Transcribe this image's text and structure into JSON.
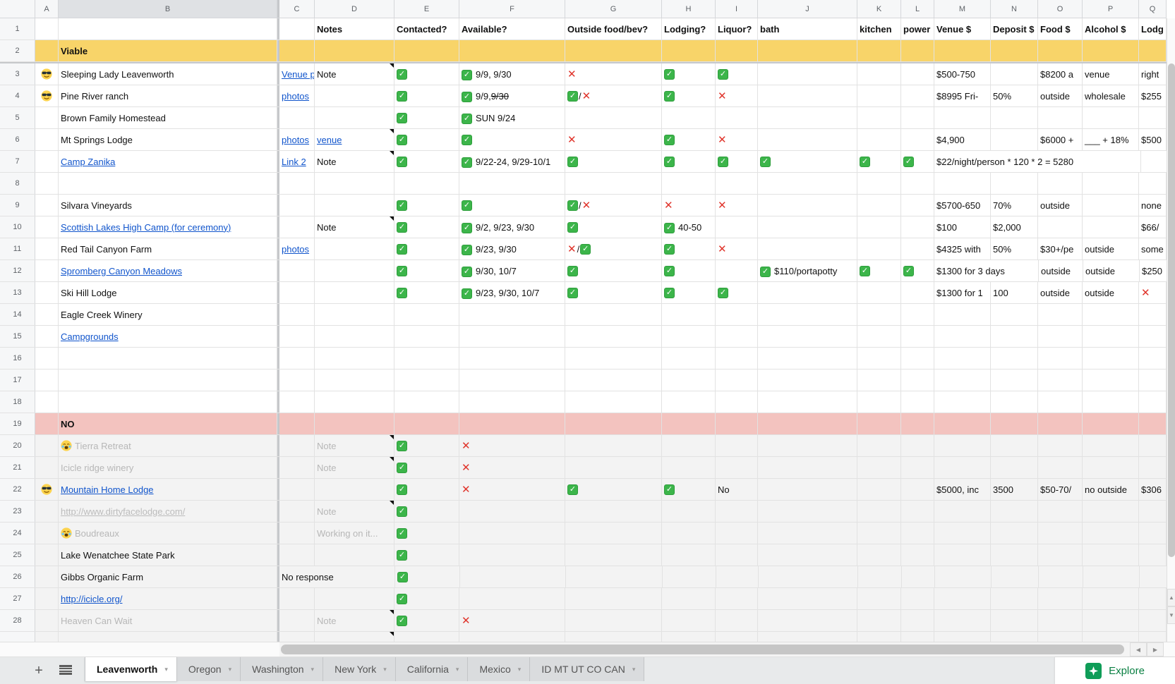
{
  "colors": {
    "viable_row": "#f8d469",
    "no_row": "#f3c3bf",
    "grayed_row": "#f3f3f3",
    "check_green": "#3cb54a",
    "cross_red": "#e0342b",
    "link_blue": "#1155cc",
    "explore_green": "#0b8043"
  },
  "icons": {
    "plus": "+",
    "caret": "▾",
    "check": "✓",
    "cross": "✕",
    "up": "▲",
    "down": "▼",
    "left": "◀",
    "right": "▶"
  },
  "sheet": {
    "row_header_width": 50,
    "columns": [
      [
        "A",
        33
      ],
      [
        "B",
        310
      ],
      [
        "C",
        50
      ],
      [
        "D",
        113
      ],
      [
        "E",
        92
      ],
      [
        "F",
        150
      ],
      [
        "G",
        137
      ],
      [
        "H",
        76
      ],
      [
        "I",
        60
      ],
      [
        "J",
        141
      ],
      [
        "K",
        62
      ],
      [
        "L",
        47
      ],
      [
        "M",
        80
      ],
      [
        "N",
        67
      ],
      [
        "O",
        63
      ],
      [
        "P",
        80
      ],
      [
        "Q",
        39
      ]
    ],
    "selected_column": "B",
    "frozen_after_column": "B",
    "frozen_after_row": 2,
    "rows": [
      {
        "n": 1,
        "head": true,
        "cells": {
          "D": {
            "t": "Notes"
          },
          "E": {
            "t": "Contacted?"
          },
          "F": {
            "t": "Available?"
          },
          "G": {
            "t": "Outside food/bev?"
          },
          "H": {
            "t": "Lodging?"
          },
          "I": {
            "t": "Liquor?"
          },
          "J": {
            "t": "bath"
          },
          "K": {
            "t": "kitchen"
          },
          "L": {
            "t": "power"
          },
          "M": {
            "t": "Venue $"
          },
          "N": {
            "t": "Deposit $"
          },
          "O": {
            "t": "Food $"
          },
          "P": {
            "t": "Alcohol $"
          },
          "Q": {
            "t": "Lodg"
          }
        }
      },
      {
        "n": 2,
        "bg": "yellow",
        "cells": {
          "B": {
            "t": "Viable",
            "b": true
          }
        }
      },
      {
        "n": 3,
        "a": "cool",
        "cells": {
          "B": {
            "t": "Sleeping Lady Leavenworth"
          },
          "C": {
            "t": "Venue p",
            "link": true
          },
          "D": {
            "t": "Note",
            "cm": true
          },
          "E": {
            "i": "c"
          },
          "F": {
            "i": "c",
            "t": "9/9, 9/30"
          },
          "G": {
            "i": "x"
          },
          "H": {
            "i": "c"
          },
          "I": {
            "i": "c"
          },
          "M": {
            "t": "$500-750"
          },
          "O": {
            "t": "$8200 a"
          },
          "P": {
            "t": "venue"
          },
          "Q": {
            "t": "right"
          }
        }
      },
      {
        "n": 4,
        "a": "cool",
        "cells": {
          "B": {
            "t": "Pine River ranch"
          },
          "C": {
            "t": "photos",
            "link": true
          },
          "E": {
            "i": "c"
          },
          "F": {
            "i": "c",
            "t": "9/9, ",
            "strike": "9/30"
          },
          "G": {
            "i": "cx"
          },
          "H": {
            "i": "c"
          },
          "I": {
            "i": "x"
          },
          "M": {
            "t": "$8995 Fri-"
          },
          "N": {
            "t": "50%"
          },
          "O": {
            "t": "outside"
          },
          "P": {
            "t": "wholesale"
          },
          "Q": {
            "t": "$255"
          }
        }
      },
      {
        "n": 5,
        "cells": {
          "B": {
            "t": "Brown Family Homestead"
          },
          "E": {
            "i": "c"
          },
          "F": {
            "i": "c",
            "t": "SUN 9/24"
          }
        }
      },
      {
        "n": 6,
        "cells": {
          "B": {
            "t": "Mt Springs Lodge"
          },
          "C": {
            "t": "photos",
            "link": true
          },
          "D": {
            "t": "venue",
            "link": true,
            "cm": true
          },
          "E": {
            "i": "c"
          },
          "F": {
            "i": "c"
          },
          "G": {
            "i": "x"
          },
          "H": {
            "i": "c"
          },
          "I": {
            "i": "x"
          },
          "M": {
            "t": "$4,900"
          },
          "O": {
            "t": "$6000 +"
          },
          "P": {
            "t": "___ + 18%"
          },
          "Q": {
            "t": "$500"
          }
        }
      },
      {
        "n": 7,
        "cells": {
          "B": {
            "t": "Camp Zanika",
            "link": true
          },
          "C": {
            "t": "Link 2",
            "link": true
          },
          "D": {
            "t": "Note",
            "cm": true
          },
          "E": {
            "i": "c"
          },
          "F": {
            "i": "c",
            "t": "9/22-24, 9/29-10/1"
          },
          "G": {
            "i": "c"
          },
          "H": {
            "i": "c"
          },
          "I": {
            "i": "c"
          },
          "J": {
            "i": "c"
          },
          "K": {
            "i": "c"
          },
          "L": {
            "i": "c"
          },
          "M": {
            "t": "$22/night/person * 120 * 2 = 5280",
            "sp": 4
          }
        }
      },
      {
        "n": 8,
        "cells": {}
      },
      {
        "n": 9,
        "cells": {
          "B": {
            "t": "Silvara Vineyards"
          },
          "E": {
            "i": "c"
          },
          "F": {
            "i": "c"
          },
          "G": {
            "i": "cx"
          },
          "H": {
            "i": "x"
          },
          "I": {
            "i": "x"
          },
          "M": {
            "t": "$5700-650"
          },
          "N": {
            "t": "70%"
          },
          "O": {
            "t": "outside"
          },
          "Q": {
            "t": "none"
          }
        }
      },
      {
        "n": 10,
        "cells": {
          "B": {
            "t": "Scottish Lakes High Camp (for ceremony)",
            "link": true
          },
          "D": {
            "t": "Note",
            "cm": true
          },
          "E": {
            "i": "c"
          },
          "F": {
            "i": "c",
            "t": "9/2, 9/23, 9/30"
          },
          "G": {
            "i": "c"
          },
          "H": {
            "i": "c",
            "t": "40-50"
          },
          "M": {
            "t": "$100"
          },
          "N": {
            "t": "$2,000"
          },
          "Q": {
            "t": "$66/"
          }
        }
      },
      {
        "n": 11,
        "cells": {
          "B": {
            "t": "Red Tail Canyon Farm"
          },
          "C": {
            "t": "photos",
            "link": true
          },
          "E": {
            "i": "c"
          },
          "F": {
            "i": "c",
            "t": "9/23, 9/30"
          },
          "G": {
            "i": "xc"
          },
          "H": {
            "i": "c"
          },
          "I": {
            "i": "x"
          },
          "M": {
            "t": "$4325 with"
          },
          "N": {
            "t": "50%"
          },
          "O": {
            "t": "$30+/pe"
          },
          "P": {
            "t": "outside"
          },
          "Q": {
            "t": "some"
          }
        }
      },
      {
        "n": 12,
        "cells": {
          "B": {
            "t": "Spromberg Canyon Meadows",
            "link": true
          },
          "E": {
            "i": "c"
          },
          "F": {
            "i": "c",
            "t": "9/30, 10/7"
          },
          "G": {
            "i": "c"
          },
          "H": {
            "i": "c"
          },
          "J": {
            "i": "c",
            "t": "$110/portapotty"
          },
          "K": {
            "i": "c"
          },
          "L": {
            "i": "c"
          },
          "M": {
            "t": "$1300 for 3 days",
            "sp": 2
          },
          "O": {
            "t": "outside"
          },
          "P": {
            "t": "outside"
          },
          "Q": {
            "t": "$250"
          }
        }
      },
      {
        "n": 13,
        "cells": {
          "B": {
            "t": "Ski Hill Lodge"
          },
          "E": {
            "i": "c"
          },
          "F": {
            "i": "c",
            "t": "9/23, 9/30, 10/7"
          },
          "G": {
            "i": "c"
          },
          "H": {
            "i": "c"
          },
          "I": {
            "i": "c"
          },
          "M": {
            "t": "$1300 for 1"
          },
          "N": {
            "t": "100"
          },
          "O": {
            "t": "outside"
          },
          "P": {
            "t": "outside"
          },
          "Q": {
            "i": "x"
          }
        }
      },
      {
        "n": 14,
        "cells": {
          "B": {
            "t": "Eagle Creek Winery"
          }
        }
      },
      {
        "n": 15,
        "cells": {
          "B": {
            "t": "Campgrounds",
            "link": true
          }
        }
      },
      {
        "n": 16,
        "cells": {}
      },
      {
        "n": 17,
        "cells": {}
      },
      {
        "n": 18,
        "cells": {}
      },
      {
        "n": 19,
        "bg": "pink",
        "cells": {
          "B": {
            "t": "NO",
            "b": true
          }
        }
      },
      {
        "n": 20,
        "bg": "gray",
        "cells": {
          "B": {
            "em": "cry",
            "t": "Tierra Retreat",
            "gray": true
          },
          "D": {
            "t": "Note",
            "gray": true,
            "cm": true
          },
          "E": {
            "i": "c"
          },
          "F": {
            "i": "x"
          }
        }
      },
      {
        "n": 21,
        "bg": "gray",
        "cells": {
          "B": {
            "t": "Icicle ridge winery",
            "gray": true
          },
          "D": {
            "t": "Note",
            "gray": true,
            "cm": true
          },
          "E": {
            "i": "c"
          },
          "F": {
            "i": "x"
          }
        }
      },
      {
        "n": 22,
        "bg": "gray",
        "a": "cool",
        "cells": {
          "B": {
            "t": "Mountain Home Lodge",
            "link": true
          },
          "E": {
            "i": "c"
          },
          "F": {
            "i": "x"
          },
          "G": {
            "i": "c"
          },
          "H": {
            "i": "c"
          },
          "I": {
            "t": "No"
          },
          "M": {
            "t": "$5000, inc"
          },
          "N": {
            "t": "3500"
          },
          "O": {
            "t": "$50-70/"
          },
          "P": {
            "t": "no outside"
          },
          "Q": {
            "t": "$306"
          }
        }
      },
      {
        "n": 23,
        "bg": "gray",
        "cells": {
          "B": {
            "t": "http://www.dirtyfacelodge.com/",
            "link": "gray"
          },
          "D": {
            "t": "Note",
            "gray": true,
            "cm": true
          },
          "E": {
            "i": "c"
          }
        }
      },
      {
        "n": 24,
        "bg": "gray",
        "cells": {
          "B": {
            "em": "cry",
            "t": "Boudreaux",
            "gray": true
          },
          "D": {
            "t": "Working on it...",
            "gray": true
          },
          "E": {
            "i": "c"
          }
        }
      },
      {
        "n": 25,
        "bg": "gray",
        "cells": {
          "B": {
            "t": "Lake Wenatchee State Park"
          },
          "E": {
            "i": "c"
          }
        }
      },
      {
        "n": 26,
        "bg": "gray",
        "cells": {
          "B": {
            "t": "Gibbs Organic Farm"
          },
          "C": {
            "t": "No response",
            "sp": 2
          },
          "E": {
            "i": "c"
          }
        }
      },
      {
        "n": 27,
        "bg": "gray",
        "cells": {
          "B": {
            "t": "http://icicle.org/",
            "link": true
          },
          "E": {
            "i": "c"
          }
        }
      },
      {
        "n": 28,
        "bg": "gray",
        "cells": {
          "B": {
            "t": "Heaven Can Wait",
            "gray": true
          },
          "D": {
            "t": "Note",
            "gray": true,
            "cm": true
          },
          "E": {
            "i": "c"
          },
          "F": {
            "i": "x"
          }
        }
      },
      {
        "n": 29,
        "bg": "gray",
        "sliver": true,
        "cells": {
          "D": {
            "cm": true
          }
        }
      }
    ]
  },
  "tabs": {
    "items": [
      {
        "label": "Leavenworth",
        "active": true
      },
      {
        "label": "Oregon",
        "active": false
      },
      {
        "label": "Washington",
        "active": false
      },
      {
        "label": "New York",
        "active": false
      },
      {
        "label": "California",
        "active": false
      },
      {
        "label": "Mexico",
        "active": false
      },
      {
        "label": "ID MT UT CO CAN",
        "active": false
      }
    ]
  },
  "explore": {
    "label": "Explore"
  }
}
